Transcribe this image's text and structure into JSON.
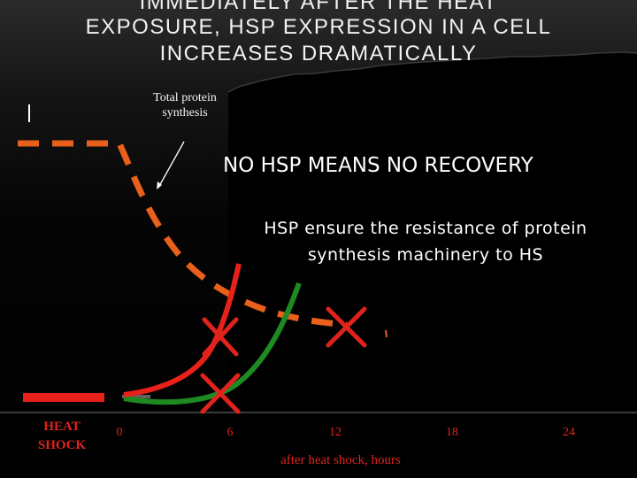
{
  "title": {
    "line1": "IMMEDIATELY AFTER THE HEAT",
    "line2": "EXPOSURE, HSP EXPRESSION IN A CELL",
    "line3": "INCREASES DRAMATICALLY"
  },
  "annotations": {
    "protein_line1": "Total protein",
    "protein_line2": "synthesis",
    "headline": "NO HSP MEANS NO RECOVERY",
    "note_line1": "HSP ensure the resistance of protein",
    "note_line2": "synthesis machinery to HS"
  },
  "axis": {
    "heat_line1": "HEAT",
    "heat_line2": "SHOCK",
    "ticks": [
      "0",
      "6",
      "12",
      "18",
      "24"
    ],
    "xlabel": "after heat shock, hours"
  },
  "colors": {
    "background": "#000000",
    "title": "#f2f2f2",
    "orange_dashed": "#e8601c",
    "red_curve": "#e8211a",
    "green_curve": "#1d8a22",
    "cross_red": "#e0231c",
    "label_red": "#e0231c"
  }
}
